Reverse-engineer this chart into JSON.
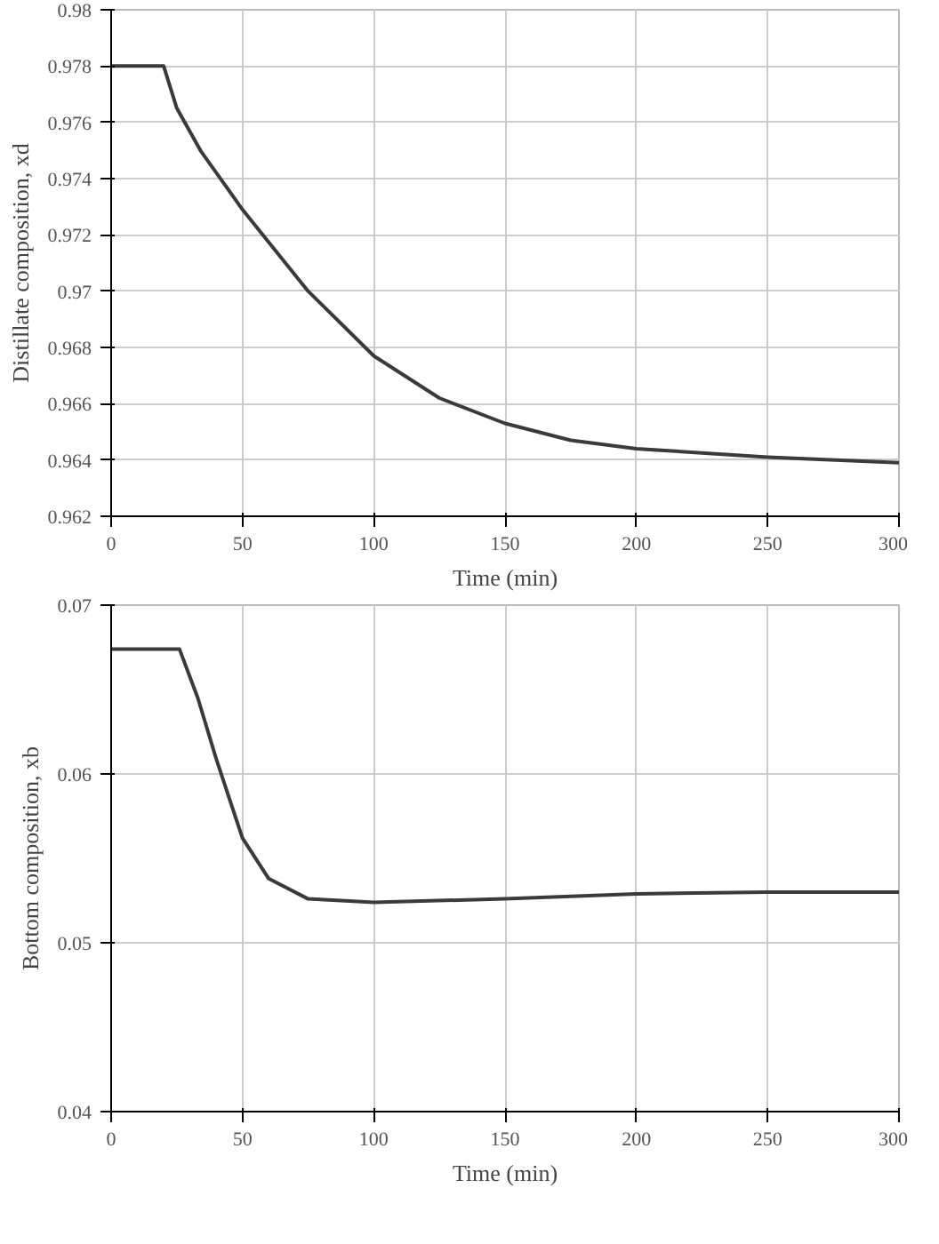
{
  "chart_data": [
    {
      "type": "line",
      "xlabel": "Time (min)",
      "ylabel": "Distillate composition, xd",
      "x": [
        0,
        10,
        20,
        25,
        34,
        50,
        75,
        100,
        125,
        150,
        175,
        200,
        250,
        300
      ],
      "series": [
        {
          "color": "#3a3a3a",
          "values": [
            0.978,
            0.978,
            0.978,
            0.9765,
            0.975,
            0.9729,
            0.97,
            0.9677,
            0.9662,
            0.9653,
            0.9647,
            0.9644,
            0.9641,
            0.9639
          ]
        }
      ],
      "xlim": [
        0,
        300
      ],
      "xticks": [
        0,
        50,
        100,
        150,
        200,
        250,
        300
      ],
      "ylim": [
        0.962,
        0.98
      ],
      "yticks": [
        0.962,
        0.964,
        0.966,
        0.968,
        0.97,
        0.972,
        0.974,
        0.976,
        0.978,
        0.98
      ],
      "grid": true
    },
    {
      "type": "line",
      "xlabel": "Time (min)",
      "ylabel": "Bottom composition, xb",
      "x": [
        0,
        10,
        20,
        26,
        33,
        40,
        50,
        60,
        75,
        100,
        150,
        200,
        250,
        300
      ],
      "series": [
        {
          "color": "#3a3a3a",
          "values": [
            0.0674,
            0.0674,
            0.0674,
            0.0674,
            0.0645,
            0.0609,
            0.0562,
            0.0538,
            0.0526,
            0.0524,
            0.0526,
            0.0529,
            0.053,
            0.053
          ]
        }
      ],
      "xlim": [
        0,
        300
      ],
      "xticks": [
        0,
        50,
        100,
        150,
        200,
        250,
        300
      ],
      "ylim": [
        0.04,
        0.07
      ],
      "yticks": [
        0.04,
        0.05,
        0.06,
        0.07
      ],
      "grid": true
    }
  ]
}
